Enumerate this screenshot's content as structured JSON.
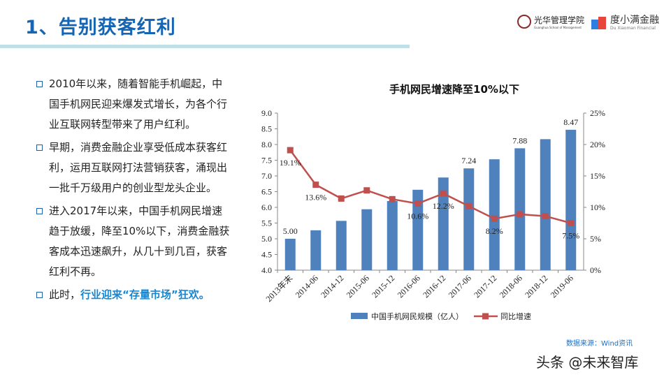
{
  "header": {
    "title": "1、告别获客红利",
    "logo_left": "光华管理学院",
    "logo_left_en": "Guanghua School of Management",
    "logo_right": "度小满金融",
    "logo_right_en": "Du Xiaoman Financial"
  },
  "bullets": [
    {
      "text": "2010年以来，随着智能手机崛起，中国手机网民迎来爆发式增长，为各个行业互联网转型带来了用户红利。"
    },
    {
      "text": "早期，消费金融企业享受低成本获客红利，运用互联网打法营销获客，涌现出一批千万级用户的创业型龙头企业。"
    },
    {
      "text": "进入2017年以来，中国手机网民增速趋于放缓，降至10%以下，消费金融获客成本迅速飙升，从几十到几百，获客红利不再。"
    },
    {
      "prefix": "此时，",
      "highlight": "行业迎来“存量市场”狂欢。"
    }
  ],
  "chart_data": {
    "type": "bar+line",
    "title": "手机网民增速降至10%以下",
    "categories": [
      "2013年末",
      "2014-06",
      "2014-12",
      "2015-06",
      "2015-12",
      "2016-06",
      "2016-12",
      "2017-06",
      "2017-12",
      "2018-06",
      "2018-12",
      "2019-06"
    ],
    "series": [
      {
        "name": "中国手机网民规模（亿人）",
        "type": "bar",
        "axis": "left",
        "color": "#4f81bd",
        "values": [
          5.0,
          5.27,
          5.57,
          5.94,
          6.2,
          6.56,
          6.95,
          7.24,
          7.53,
          7.88,
          8.17,
          8.47
        ],
        "labels": {
          "0": "5.00",
          "7": "7.24",
          "9": "7.88",
          "11": "8.47"
        }
      },
      {
        "name": "同比增速",
        "type": "line",
        "axis": "right",
        "color": "#c0504d",
        "values": [
          19.1,
          13.6,
          11.4,
          12.7,
          11.3,
          10.6,
          12.2,
          10.2,
          8.2,
          8.9,
          8.6,
          7.5
        ],
        "labels": {
          "0": "19.1%",
          "1": "13.6%",
          "5": "10.6%",
          "6": "12.2%",
          "8": "8.2%",
          "11": "7.5%"
        }
      }
    ],
    "ylim": [
      4.0,
      9.0
    ],
    "yticks": [
      "4.0",
      "4.5",
      "5.0",
      "5.5",
      "6.0",
      "6.5",
      "7.0",
      "7.5",
      "8.0",
      "8.5",
      "9.0"
    ],
    "y2lim": [
      0,
      25
    ],
    "y2ticks": [
      "0%",
      "5%",
      "10%",
      "15%",
      "20%",
      "25%"
    ],
    "legend": "bottom",
    "grid": false
  },
  "footer": {
    "source": "数据来源：Wind资讯",
    "watermark": "头条 @未来智库"
  }
}
